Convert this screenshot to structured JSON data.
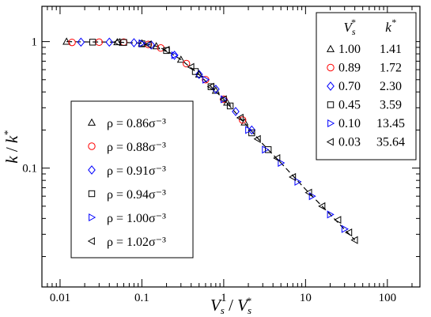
{
  "chart_data": {
    "type": "scatter",
    "xscale": "log",
    "yscale": "log",
    "xlim": [
      0.006,
      250
    ],
    "ylim": [
      0.0115,
      1.9
    ],
    "xlabel": {
      "main": "V",
      "sub": "s",
      "slash": " / ",
      "main2": "V",
      "sub2": "s",
      "sup2": "*"
    },
    "ylabel": {
      "main": "k",
      "slash": " / ",
      "main2": "k",
      "sup2": "*"
    },
    "xticks": [
      {
        "value": 0.01,
        "label": "0.01"
      },
      {
        "value": 0.1,
        "label": "0.1"
      },
      {
        "value": 1,
        "label": "1"
      },
      {
        "value": 10,
        "label": "10"
      },
      {
        "value": 100,
        "label": "100"
      }
    ],
    "yticks": [
      {
        "value": 0.1,
        "label": "0.1"
      },
      {
        "value": 1,
        "label": "1"
      }
    ],
    "left_legend": [
      {
        "marker": "triangle-up",
        "color": "#000000",
        "label": "ρ = 0.86σ⁻³"
      },
      {
        "marker": "circle",
        "color": "#ff0000",
        "label": "ρ = 0.88σ⁻³"
      },
      {
        "marker": "diamond",
        "color": "#0000ff",
        "label": "ρ = 0.91σ⁻³"
      },
      {
        "marker": "square",
        "color": "#000000",
        "label": "ρ = 0.94σ⁻³"
      },
      {
        "marker": "triangle-right",
        "color": "#0000ff",
        "label": "ρ = 1.00σ⁻³"
      },
      {
        "marker": "triangle-left",
        "color": "#000000",
        "label": "ρ = 1.02σ⁻³"
      }
    ],
    "right_legend": {
      "header_v": "V",
      "header_v_sub": "s",
      "header_v_sup": "*",
      "header_k": "k",
      "header_k_sup": "*",
      "rows": [
        {
          "marker": "triangle-up",
          "color": "#000000",
          "vs": "1.00",
          "k": "1.41"
        },
        {
          "marker": "circle",
          "color": "#ff0000",
          "vs": "0.89",
          "k": "1.72"
        },
        {
          "marker": "diamond",
          "color": "#0000ff",
          "vs": "0.70",
          "k": "2.30"
        },
        {
          "marker": "square",
          "color": "#000000",
          "vs": "0.45",
          "k": "3.59"
        },
        {
          "marker": "triangle-right",
          "color": "#0000ff",
          "vs": "0.10",
          "k": "13.45"
        },
        {
          "marker": "triangle-left",
          "color": "#000000",
          "vs": "0.03",
          "k": "35.64"
        }
      ]
    },
    "fit_curve": {
      "style": "dashed",
      "x": [
        0.012,
        0.02,
        0.05,
        0.1,
        0.15,
        0.2,
        0.3,
        0.5,
        0.7,
        1,
        1.5,
        2,
        3,
        5,
        10,
        20,
        40
      ],
      "y": [
        1.0,
        0.995,
        0.99,
        0.97,
        0.92,
        0.85,
        0.72,
        0.55,
        0.44,
        0.35,
        0.26,
        0.21,
        0.155,
        0.11,
        0.068,
        0.043,
        0.027
      ]
    },
    "series": [
      {
        "marker": "triangle-up",
        "color": "#000000",
        "x": [
          0.012,
          0.05,
          0.1,
          0.15,
          0.3,
          0.5,
          0.8,
          1.1,
          1.8
        ],
        "y": [
          1.0,
          0.99,
          0.97,
          0.92,
          0.72,
          0.55,
          0.41,
          0.33,
          0.23
        ]
      },
      {
        "marker": "circle",
        "color": "#ff0000",
        "x": [
          0.014,
          0.03,
          0.06,
          0.12,
          0.17,
          0.35,
          0.6,
          1.0,
          1.7
        ],
        "y": [
          0.985,
          0.99,
          0.99,
          0.95,
          0.89,
          0.67,
          0.5,
          0.35,
          0.24
        ]
      },
      {
        "marker": "diamond",
        "color": "#0000ff",
        "x": [
          0.018,
          0.04,
          0.08,
          0.13,
          0.25,
          0.5,
          0.8,
          1.4,
          2.2
        ],
        "y": [
          0.99,
          0.99,
          0.98,
          0.94,
          0.78,
          0.55,
          0.42,
          0.28,
          0.2
        ]
      },
      {
        "marker": "square",
        "color": "#000000",
        "x": [
          0.025,
          0.06,
          0.1,
          0.2,
          0.45,
          0.7,
          1.2,
          2.2,
          3.5
        ],
        "y": [
          0.99,
          0.985,
          0.96,
          0.85,
          0.58,
          0.44,
          0.31,
          0.19,
          0.14
        ]
      },
      {
        "marker": "triangle-right",
        "color": "#0000ff",
        "x": [
          0.1,
          0.25,
          0.6,
          1.0,
          2.0,
          3.2,
          5.0,
          8.0,
          12,
          20,
          30
        ],
        "y": [
          0.97,
          0.78,
          0.5,
          0.35,
          0.2,
          0.14,
          0.11,
          0.078,
          0.06,
          0.043,
          0.033
        ]
      },
      {
        "marker": "triangle-left",
        "color": "#000000",
        "x": [
          0.05,
          0.12,
          0.2,
          0.4,
          0.7,
          1.0,
          1.6,
          2.6,
          4.5,
          7.0,
          11,
          16,
          25,
          34,
          40
        ],
        "y": [
          0.99,
          0.95,
          0.86,
          0.63,
          0.44,
          0.35,
          0.25,
          0.17,
          0.12,
          0.085,
          0.064,
          0.05,
          0.039,
          0.031,
          0.027
        ]
      }
    ]
  }
}
